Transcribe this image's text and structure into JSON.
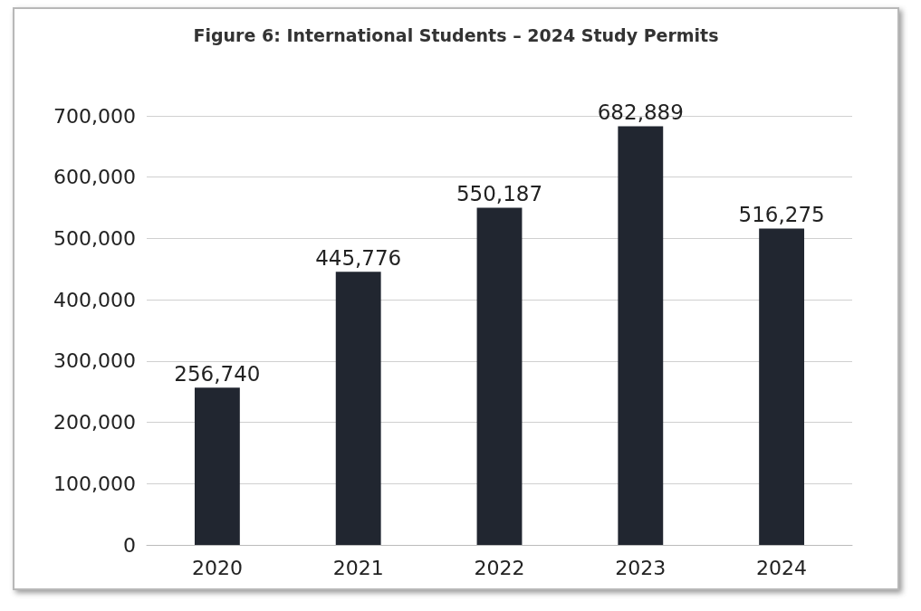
{
  "chart_data": {
    "type": "bar",
    "title": "Figure 6: International Students – 2024 Study Permits",
    "categories": [
      "2020",
      "2021",
      "2022",
      "2023",
      "2024"
    ],
    "values": [
      256740,
      445776,
      550187,
      682889,
      516275
    ],
    "color": "#212630",
    "ylim": [
      0,
      700000
    ],
    "yticks": [
      {
        "value": 0,
        "label": "0"
      },
      {
        "value": 100000,
        "label": "100,000"
      },
      {
        "value": 200000,
        "label": "200,000"
      },
      {
        "value": 300000,
        "label": "300,000"
      },
      {
        "value": 400000,
        "label": "400,000"
      },
      {
        "value": 500000,
        "label": "500,000"
      },
      {
        "value": 600000,
        "label": "600,000"
      },
      {
        "value": 700000,
        "label": "700,000"
      }
    ],
    "value_labels": [
      "256,740",
      "445,776",
      "550,187",
      "682,889",
      "516,275"
    ],
    "grid": "y"
  }
}
